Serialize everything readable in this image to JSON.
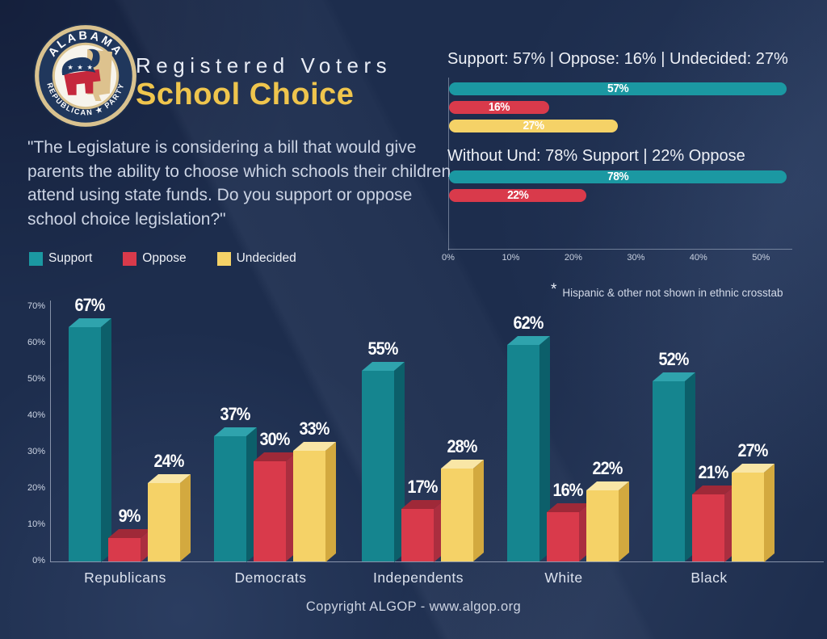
{
  "header": {
    "kicker": "Registered Voters",
    "title": "School Choice",
    "question": "\"The Legislature is considering a bill that would give parents the ability to choose which schools their children attend using state funds. Do you support or oppose school choice legislation?\""
  },
  "logo": {
    "top_text": "ALABAMA",
    "bottom_text": "REPUBLICAN ★ PARTY",
    "stars": "★ ★ ★"
  },
  "colors": {
    "background": "#1d2d4d",
    "accent_yellow": "#efc54d",
    "teal": "#15858f",
    "teal_top": "#2fa3ad",
    "teal_side": "#0c5f6a",
    "teal_bright": "#1b98a2",
    "red": "#d93a4b",
    "red_top": "#9f2938",
    "red_side": "#ab2e3f",
    "yellow": "#f5d267",
    "yellow_top": "#f9e6a6",
    "yellow_side": "#d3a93f"
  },
  "legend": {
    "items": [
      {
        "label": "Support",
        "color_key": "teal_bright"
      },
      {
        "label": "Oppose",
        "color_key": "red"
      },
      {
        "label": "Undecided",
        "color_key": "yellow"
      }
    ]
  },
  "note": {
    "asterisk": "*",
    "text": "Hispanic & other not shown in ethnic crosstab"
  },
  "footer": {
    "text": "Copyright ALGOP -  www.algop.org"
  },
  "chart_data": [
    {
      "type": "bar",
      "orientation": "horizontal",
      "unit": "%",
      "x_ticks": [
        "0%",
        "10%",
        "20%",
        "30%",
        "40%",
        "50%"
      ],
      "x_axis_max": 55,
      "legend_position": "none",
      "grid": false,
      "sections": [
        {
          "title": "Support: 57% | Oppose: 16% | Undecided: 27%",
          "bars": [
            {
              "name": "Support",
              "label": "57%",
              "value": 57,
              "color_key": "teal_bright"
            },
            {
              "name": "Oppose",
              "label": "16%",
              "value": 16,
              "color_key": "red"
            },
            {
              "name": "Undecided",
              "label": "27%",
              "value": 27,
              "color_key": "yellow"
            }
          ]
        },
        {
          "title": "Without Und: 78% Support | 22% Oppose",
          "bars": [
            {
              "name": "Support",
              "label": "78%",
              "value": 78,
              "color_key": "teal_bright"
            },
            {
              "name": "Oppose",
              "label": "22%",
              "value": 22,
              "color_key": "red"
            }
          ]
        }
      ]
    },
    {
      "type": "bar",
      "style": "3d-grouped",
      "unit": "%",
      "categories": [
        "Republicans",
        "Democrats",
        "Independents",
        "White",
        "Black"
      ],
      "series": [
        {
          "name": "Support",
          "color_key": "teal",
          "values": [
            67,
            37,
            55,
            62,
            52
          ]
        },
        {
          "name": "Oppose",
          "color_key": "red",
          "values": [
            9,
            30,
            17,
            16,
            21
          ]
        },
        {
          "name": "Undecided",
          "color_key": "yellow",
          "values": [
            24,
            33,
            28,
            22,
            27
          ]
        }
      ],
      "y_ticks": [
        "0%",
        "10%",
        "20%",
        "30%",
        "40%",
        "50%",
        "60%",
        "70%"
      ],
      "ylim": [
        0,
        70
      ],
      "grid": false,
      "legend_position": "top-left"
    }
  ]
}
